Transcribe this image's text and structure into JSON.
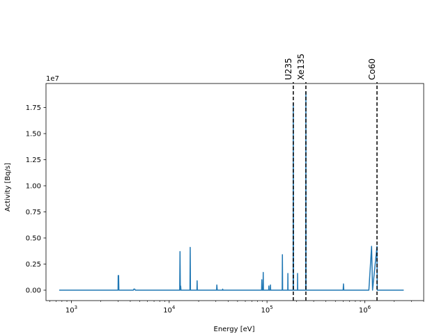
{
  "chart_data": {
    "type": "line",
    "xlabel": "Energy [eV]",
    "ylabel": "Activity [Bq/s]",
    "x_scale": "log",
    "y_offset_label": "1e7",
    "xlim": [
      550,
      4000000
    ],
    "ylim": [
      -1000000,
      19800000
    ],
    "grid": false,
    "x_ticks": [
      {
        "value": 1000,
        "base": "10",
        "exp": "3"
      },
      {
        "value": 10000,
        "base": "10",
        "exp": "4"
      },
      {
        "value": 100000,
        "base": "10",
        "exp": "5"
      },
      {
        "value": 1000000,
        "base": "10",
        "exp": "6"
      }
    ],
    "y_ticks": [
      {
        "value": 0,
        "label": "0.00"
      },
      {
        "value": 2500000,
        "label": "0.25"
      },
      {
        "value": 5000000,
        "label": "0.50"
      },
      {
        "value": 7500000,
        "label": "0.75"
      },
      {
        "value": 10000000,
        "label": "1.00"
      },
      {
        "value": 12500000,
        "label": "1.25"
      },
      {
        "value": 15000000,
        "label": "1.50"
      },
      {
        "value": 17500000,
        "label": "1.75"
      }
    ],
    "series": [
      {
        "color": "#1f77b4",
        "points": [
          [
            750,
            0
          ],
          [
            3000,
            0
          ],
          [
            3010,
            1400000
          ],
          [
            3040,
            1400000
          ],
          [
            3060,
            0
          ],
          [
            4300,
            0
          ],
          [
            4350,
            100000
          ],
          [
            4450,
            100000
          ],
          [
            4500,
            0
          ],
          [
            12800,
            0
          ],
          [
            12900,
            3700000
          ],
          [
            13000,
            0
          ],
          [
            13100,
            400000
          ],
          [
            13200,
            0
          ],
          [
            16300,
            0
          ],
          [
            16400,
            4100000
          ],
          [
            16500,
            0
          ],
          [
            19200,
            0
          ],
          [
            19300,
            900000
          ],
          [
            19400,
            0
          ],
          [
            30500,
            0
          ],
          [
            30700,
            500000
          ],
          [
            31000,
            0
          ],
          [
            35000,
            0
          ],
          [
            35200,
            100000
          ],
          [
            35500,
            0
          ],
          [
            88000,
            0
          ],
          [
            88500,
            1000000
          ],
          [
            89000,
            0
          ],
          [
            91000,
            0
          ],
          [
            91500,
            1700000
          ],
          [
            92000,
            0
          ],
          [
            104000,
            0
          ],
          [
            104500,
            400000
          ],
          [
            105000,
            0
          ],
          [
            108000,
            0
          ],
          [
            108500,
            500000
          ],
          [
            109000,
            0
          ],
          [
            143000,
            0
          ],
          [
            143700,
            3400000
          ],
          [
            144500,
            0
          ],
          [
            163000,
            0
          ],
          [
            163500,
            1600000
          ],
          [
            164000,
            0
          ],
          [
            185000,
            0
          ],
          [
            185700,
            17900000
          ],
          [
            186500,
            0
          ],
          [
            205000,
            0
          ],
          [
            205300,
            1600000
          ],
          [
            206000,
            0
          ],
          [
            249000,
            0
          ],
          [
            249800,
            19000000
          ],
          [
            250500,
            0
          ],
          [
            600000,
            0
          ],
          [
            605000,
            600000
          ],
          [
            610000,
            0
          ],
          [
            1100000,
            0
          ],
          [
            1173000,
            4200000
          ],
          [
            1200000,
            0
          ],
          [
            1332000,
            4200000
          ],
          [
            1340000,
            0
          ],
          [
            2500000,
            0
          ]
        ]
      }
    ],
    "markers": [
      {
        "label": "U235",
        "x": 185700
      },
      {
        "label": "Xe135",
        "x": 249800
      },
      {
        "label": "Co60",
        "x": 1332500
      }
    ]
  }
}
